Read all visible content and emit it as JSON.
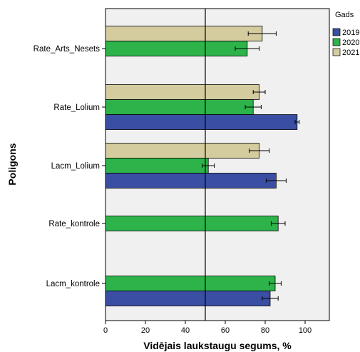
{
  "chart_data": {
    "type": "bar",
    "orientation": "horizontal",
    "xlabel": "Vidējais laukstaugu segums, %",
    "ylabel": "Poligons",
    "xlim": [
      0,
      110
    ],
    "xticks": [
      0,
      20,
      40,
      60,
      80,
      100
    ],
    "reference_line": 50,
    "categories": [
      "Rate_Arts_Nesets",
      "Rate_Lolium",
      "Lacm_Lolium",
      "Rate_kontrole",
      "Lacm_kontrole"
    ],
    "legend": {
      "title": "Gads",
      "placement": "right"
    },
    "series": [
      {
        "name": "2021",
        "color": "#d4cc9e",
        "values": [
          78.5,
          77,
          77,
          null,
          null
        ],
        "errors": [
          7,
          3,
          5,
          null,
          null
        ]
      },
      {
        "name": "2020",
        "color": "#2db34a",
        "values": [
          71,
          74,
          51.5,
          86.5,
          85
        ],
        "errors": [
          6,
          4,
          3,
          3.5,
          3
        ]
      },
      {
        "name": "2019",
        "color": "#3a4fa3",
        "values": [
          null,
          96,
          85.5,
          null,
          82.5
        ],
        "errors": [
          null,
          1,
          5,
          null,
          4
        ]
      }
    ],
    "legend_order": [
      "2019",
      "2020",
      "2021"
    ],
    "grid": false
  }
}
